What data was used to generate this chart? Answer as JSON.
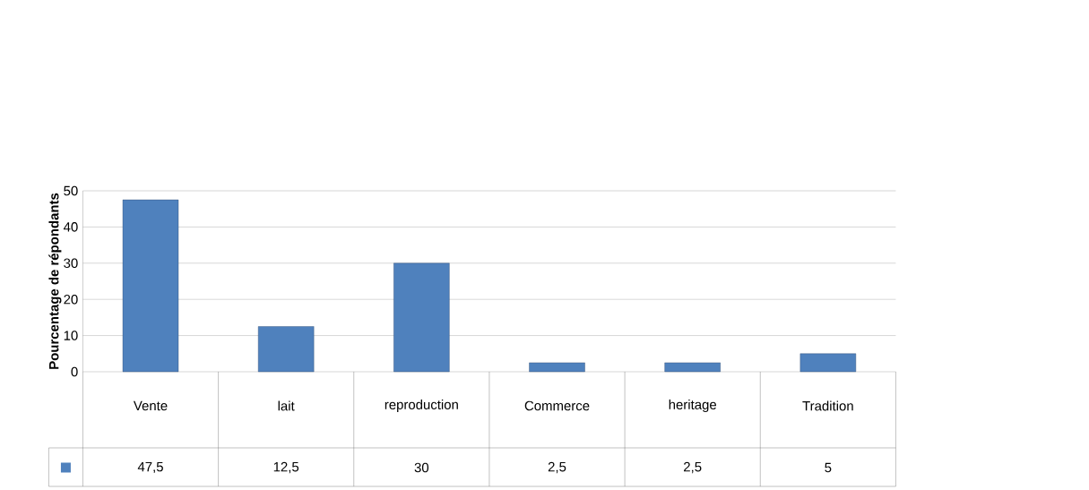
{
  "chart_data": {
    "type": "bar",
    "ylabel": "Pourcentage de répondants",
    "categories": [
      "Vente",
      "lait",
      "reproduction",
      "Commerce",
      "heritage",
      "Tradition"
    ],
    "values": [
      47.5,
      12.5,
      30,
      2.5,
      2.5,
      5
    ],
    "value_labels": [
      "47,5",
      "12,5",
      "30",
      "2,5",
      "2,5",
      "5"
    ],
    "color": "#4f81bd",
    "ylim": [
      0,
      50
    ],
    "yticks": [
      0,
      10,
      20,
      30,
      40,
      50
    ],
    "grid": "y"
  }
}
